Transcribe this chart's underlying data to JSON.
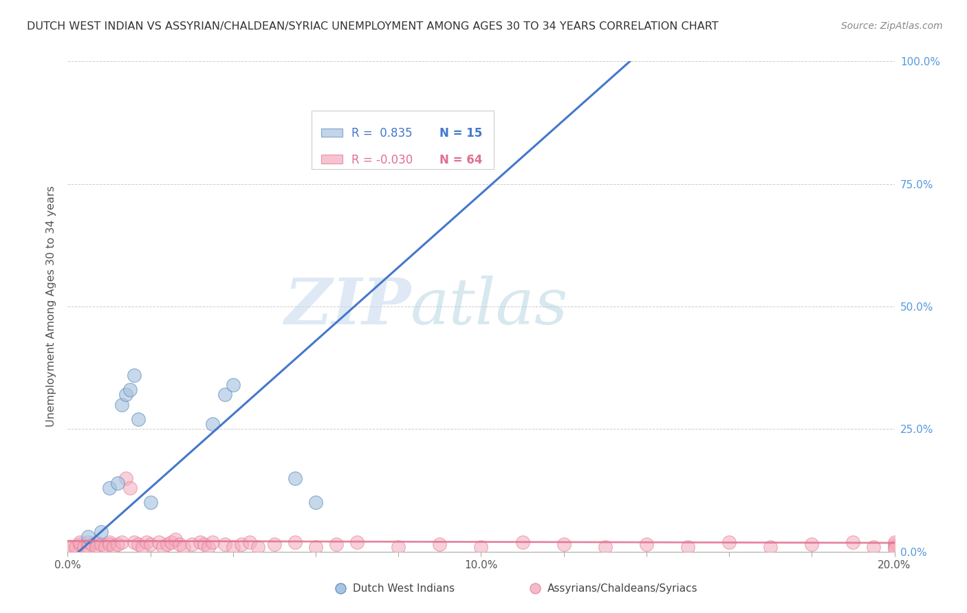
{
  "title": "DUTCH WEST INDIAN VS ASSYRIAN/CHALDEAN/SYRIAC UNEMPLOYMENT AMONG AGES 30 TO 34 YEARS CORRELATION CHART",
  "source": "Source: ZipAtlas.com",
  "ylabel": "Unemployment Among Ages 30 to 34 years",
  "xlim": [
    0.0,
    0.2
  ],
  "ylim": [
    0.0,
    1.0
  ],
  "blue_R": 0.835,
  "blue_N": 15,
  "pink_R": -0.03,
  "pink_N": 64,
  "blue_color": "#A8C4E0",
  "pink_color": "#F4AABB",
  "blue_edge_color": "#5588BB",
  "pink_edge_color": "#E07090",
  "blue_line_color": "#4477CC",
  "pink_line_color": "#E07090",
  "watermark_zip": "ZIP",
  "watermark_atlas": "atlas",
  "blue_scatter_x": [
    0.005,
    0.008,
    0.01,
    0.012,
    0.013,
    0.014,
    0.015,
    0.016,
    0.017,
    0.02,
    0.035,
    0.038,
    0.04,
    0.055,
    0.06
  ],
  "blue_scatter_y": [
    0.03,
    0.04,
    0.13,
    0.14,
    0.3,
    0.32,
    0.33,
    0.36,
    0.27,
    0.1,
    0.26,
    0.32,
    0.34,
    0.15,
    0.1
  ],
  "pink_scatter_x": [
    0.0,
    0.001,
    0.002,
    0.003,
    0.003,
    0.004,
    0.005,
    0.005,
    0.006,
    0.007,
    0.007,
    0.008,
    0.009,
    0.01,
    0.01,
    0.011,
    0.012,
    0.013,
    0.014,
    0.015,
    0.016,
    0.017,
    0.018,
    0.019,
    0.02,
    0.022,
    0.023,
    0.024,
    0.025,
    0.026,
    0.027,
    0.028,
    0.03,
    0.032,
    0.033,
    0.034,
    0.035,
    0.038,
    0.04,
    0.042,
    0.044,
    0.046,
    0.05,
    0.055,
    0.06,
    0.065,
    0.07,
    0.08,
    0.09,
    0.1,
    0.11,
    0.12,
    0.13,
    0.14,
    0.15,
    0.16,
    0.17,
    0.18,
    0.19,
    0.195,
    0.2,
    0.2,
    0.2,
    0.2
  ],
  "pink_scatter_y": [
    0.01,
    0.01,
    0.01,
    0.015,
    0.02,
    0.01,
    0.02,
    0.01,
    0.015,
    0.02,
    0.01,
    0.015,
    0.01,
    0.02,
    0.015,
    0.01,
    0.015,
    0.02,
    0.15,
    0.13,
    0.02,
    0.015,
    0.01,
    0.02,
    0.015,
    0.02,
    0.01,
    0.015,
    0.02,
    0.025,
    0.015,
    0.01,
    0.015,
    0.02,
    0.015,
    0.01,
    0.02,
    0.015,
    0.01,
    0.015,
    0.02,
    0.01,
    0.015,
    0.02,
    0.01,
    0.015,
    0.02,
    0.01,
    0.015,
    0.01,
    0.02,
    0.015,
    0.01,
    0.015,
    0.01,
    0.02,
    0.01,
    0.015,
    0.02,
    0.01,
    0.015,
    0.02,
    0.01,
    0.005
  ],
  "background_color": "#FFFFFF",
  "grid_color": "#CCCCCC",
  "blue_line_slope": 7.5,
  "blue_line_intercept": -0.02,
  "pink_line_slope": -0.02,
  "pink_line_intercept": 0.022
}
